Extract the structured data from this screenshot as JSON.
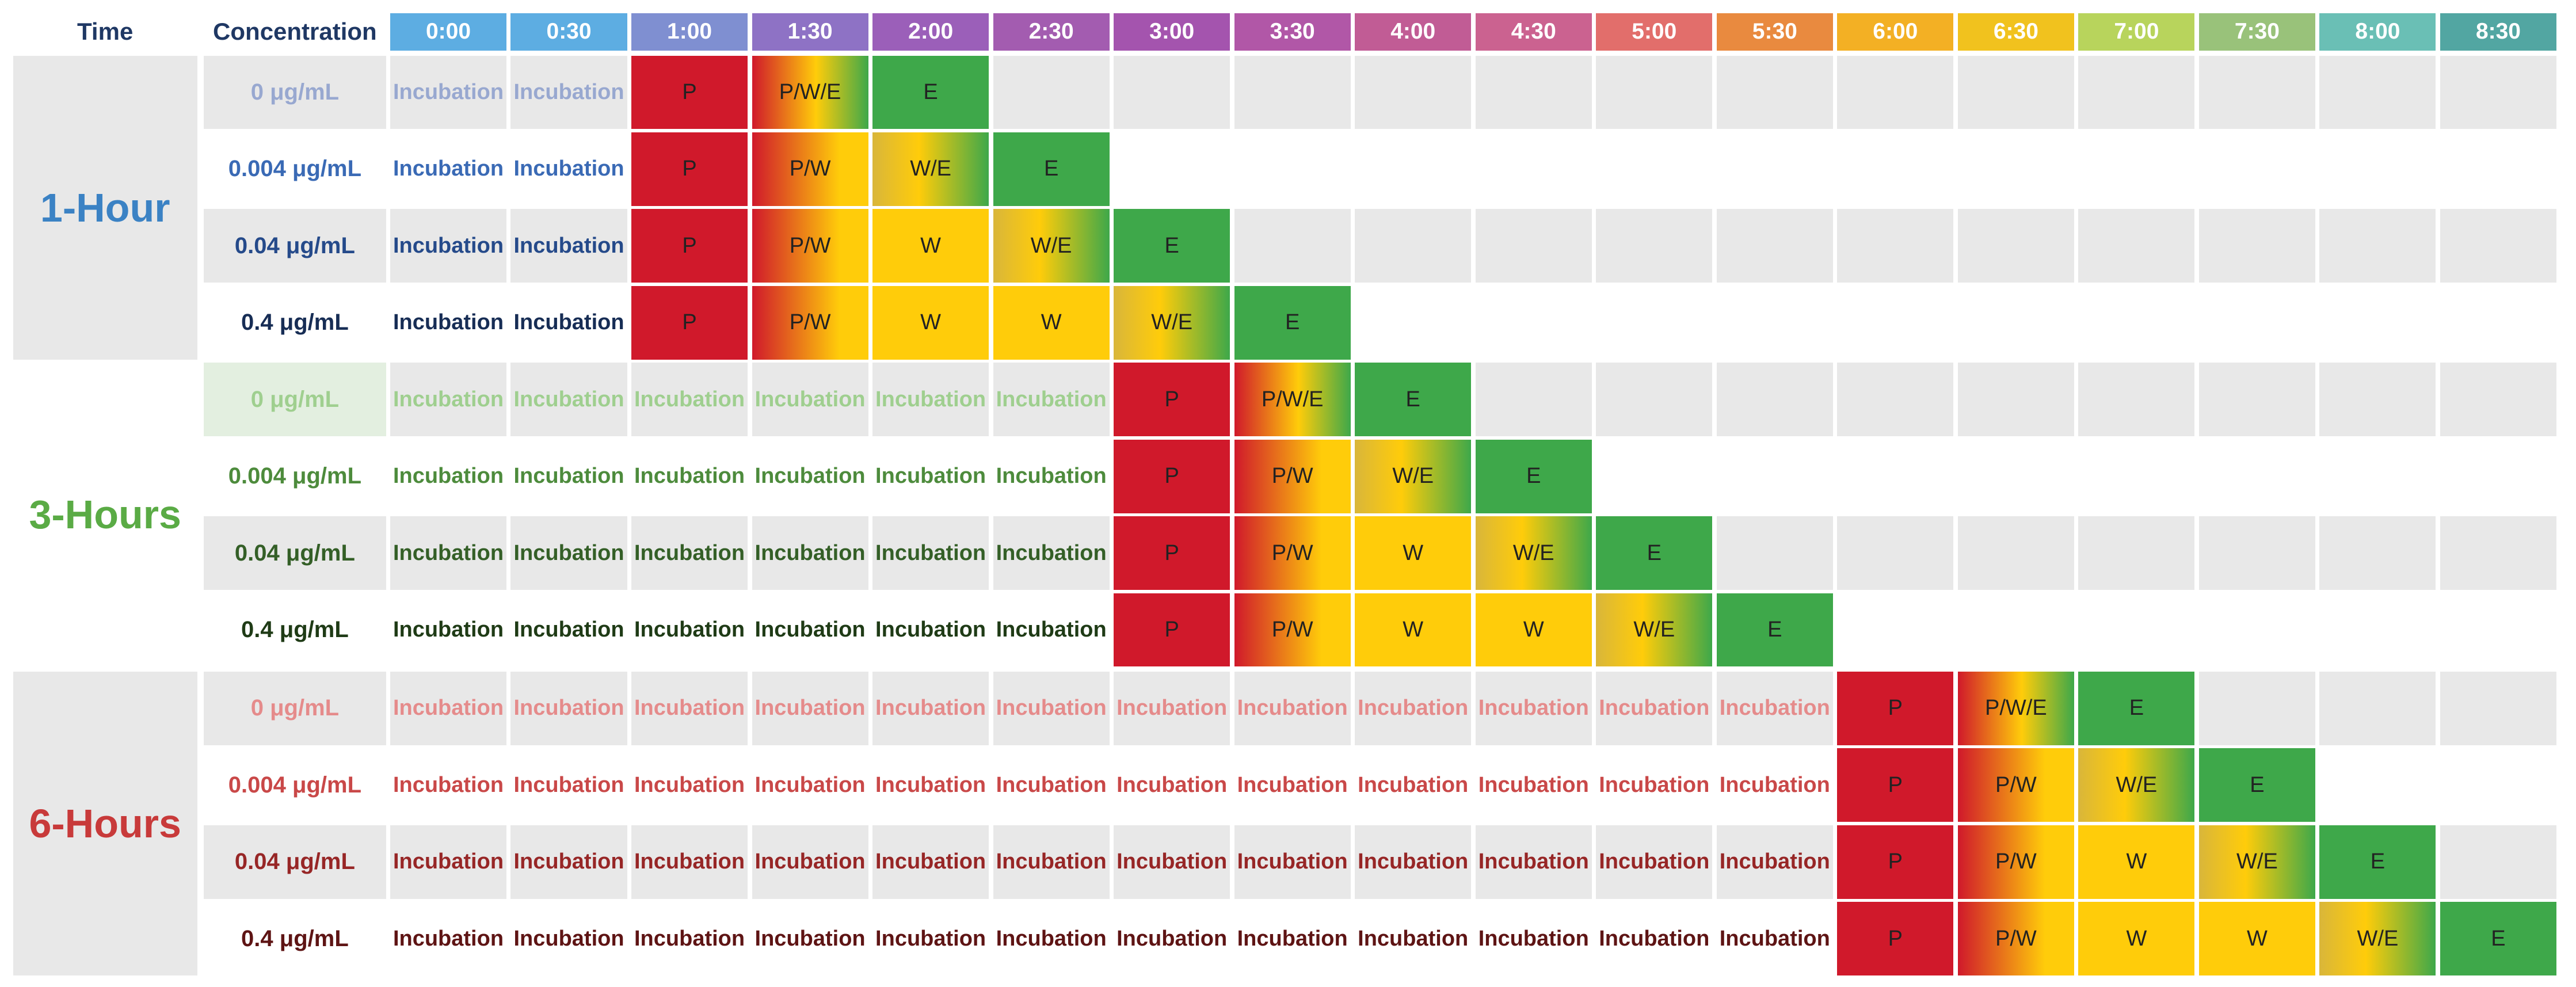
{
  "header": {
    "time_label": "Time",
    "concentration_label": "Concentration"
  },
  "time_slots": [
    "0:00",
    "0:30",
    "1:00",
    "1:30",
    "2:00",
    "2:30",
    "3:00",
    "3:30",
    "4:00",
    "4:30",
    "5:00",
    "5:30",
    "6:00",
    "6:30",
    "7:00",
    "7:30",
    "8:00",
    "8:30"
  ],
  "time_colors": [
    "#5dade2",
    "#5dade2",
    "#7f8fd1",
    "#8e72c5",
    "#9b5fb9",
    "#a35cb0",
    "#a454ae",
    "#b157a7",
    "#c15c95",
    "#cb6290",
    "#e26e6b",
    "#e98a3f",
    "#f3b024",
    "#f1c21e",
    "#b8d45c",
    "#99c27a",
    "#6abfb5",
    "#52a6a2"
  ],
  "incubation_label": "Incubation",
  "phase_colors": {
    "P": "#d0192b",
    "W": "#ffcc0a",
    "E": "#3ea84a",
    "empty": "#e8e8e8"
  },
  "groups": [
    {
      "label": "1-Hour",
      "color": "#3b82c4",
      "rows": [
        {
          "concentration": "0 μg/mL",
          "text_color": "#98a8d0",
          "incubation_slots": 2,
          "phases": [
            "P",
            "P/W/E",
            "E"
          ]
        },
        {
          "concentration": "0.004 μg/mL",
          "text_color": "#3a6ab5",
          "incubation_slots": 2,
          "phases": [
            "P",
            "P/W",
            "W/E",
            "E"
          ]
        },
        {
          "concentration": "0.04 μg/mL",
          "text_color": "#254a8a",
          "incubation_slots": 2,
          "phases": [
            "P",
            "P/W",
            "W",
            "W/E",
            "E"
          ]
        },
        {
          "concentration": "0.4 μg/mL",
          "text_color": "#172d55",
          "incubation_slots": 2,
          "phases": [
            "P",
            "P/W",
            "W",
            "W",
            "W/E",
            "E"
          ]
        }
      ]
    },
    {
      "label": "3-Hours",
      "color": "#5aab45",
      "rows": [
        {
          "concentration": "0 μg/mL",
          "text_color": "#9fcf8f",
          "incubation_slots": 6,
          "phases": [
            "P",
            "P/W/E",
            "E"
          ]
        },
        {
          "concentration": "0.004 μg/mL",
          "text_color": "#4d8b3c",
          "incubation_slots": 6,
          "phases": [
            "P",
            "P/W",
            "W/E",
            "E"
          ]
        },
        {
          "concentration": "0.04 μg/mL",
          "text_color": "#345f27",
          "incubation_slots": 6,
          "phases": [
            "P",
            "P/W",
            "W",
            "W/E",
            "E"
          ]
        },
        {
          "concentration": "0.4 μg/mL",
          "text_color": "#1f3b16",
          "incubation_slots": 6,
          "phases": [
            "P",
            "P/W",
            "W",
            "W",
            "W/E",
            "E"
          ]
        }
      ]
    },
    {
      "label": "6-Hours",
      "color": "#c83a3a",
      "rows": [
        {
          "concentration": "0 μg/mL",
          "text_color": "#e58b8b",
          "incubation_slots": 12,
          "phases": [
            "P",
            "P/W/E",
            "E"
          ]
        },
        {
          "concentration": "0.004 μg/mL",
          "text_color": "#c94848",
          "incubation_slots": 12,
          "phases": [
            "P",
            "P/W",
            "W/E",
            "E"
          ]
        },
        {
          "concentration": "0.04 μg/mL",
          "text_color": "#972626",
          "incubation_slots": 12,
          "phases": [
            "P",
            "P/W",
            "W",
            "W/E",
            "E"
          ]
        },
        {
          "concentration": "0.4 μg/mL",
          "text_color": "#5e1414",
          "incubation_slots": 12,
          "phases": [
            "P",
            "P/W",
            "W",
            "W",
            "W/E",
            "E"
          ]
        }
      ]
    }
  ]
}
